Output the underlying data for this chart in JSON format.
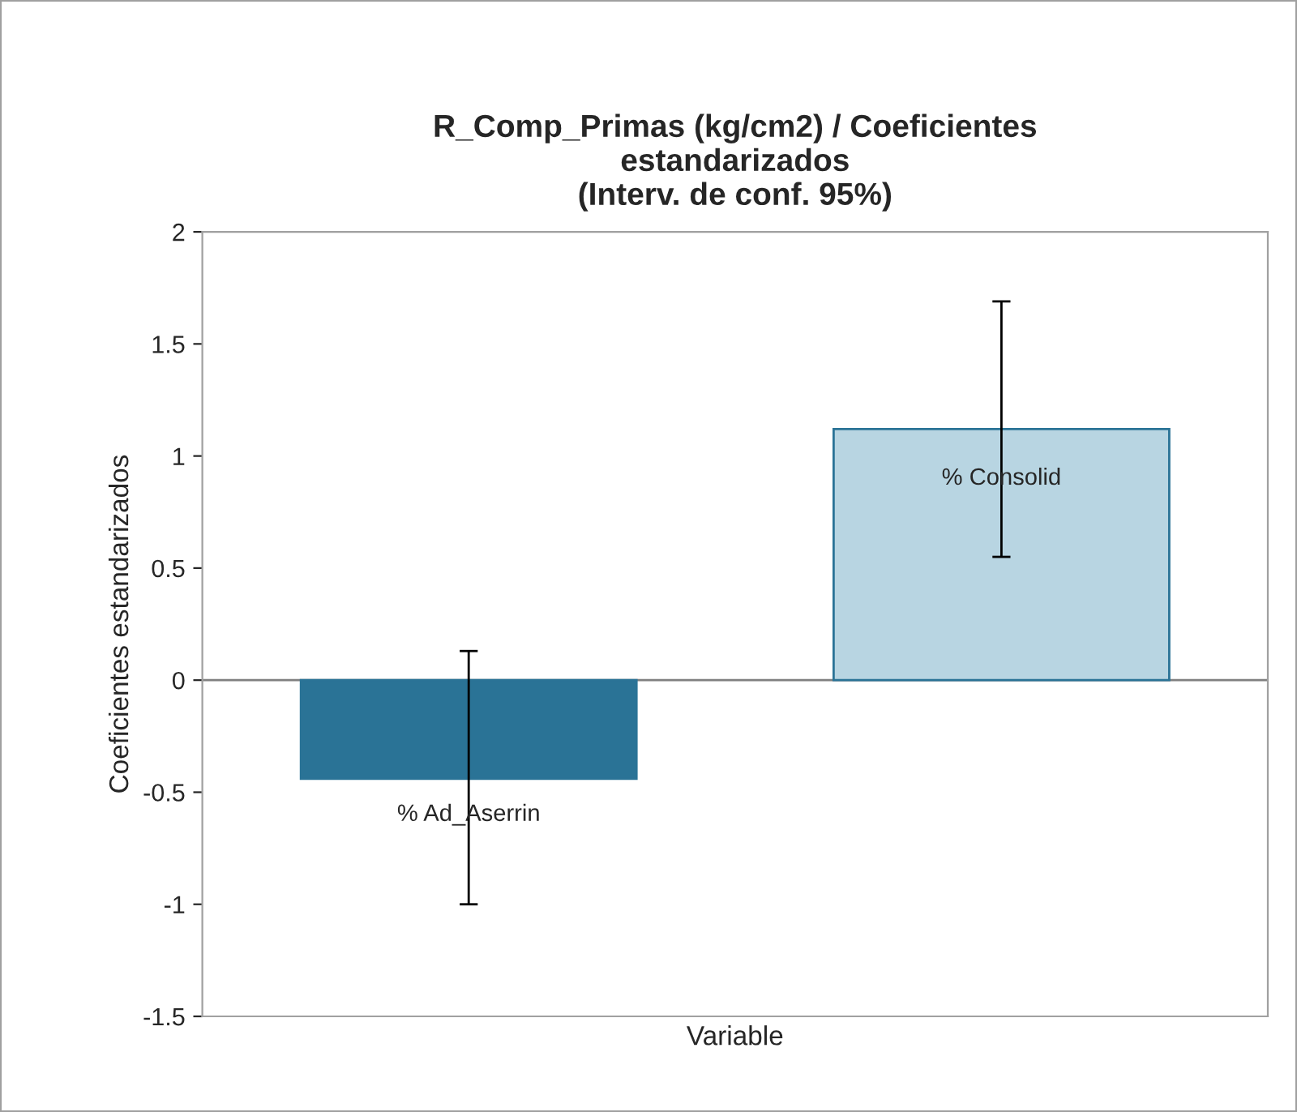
{
  "chart_data": {
    "type": "bar",
    "title": "R_Comp_Primas (kg/cm2) / Coeficientes\nestandarizados\n(Interv. de conf. 95%)",
    "xlabel": "Variable",
    "ylabel": "Coeficientes estandarizados",
    "categories": [
      "% Ad_Aserrin",
      "% Consolid"
    ],
    "values": [
      -0.44,
      1.12
    ],
    "colors": [
      "#2a7396",
      "#b8d5e2"
    ],
    "errors": [
      [
        -1.0,
        0.13
      ],
      [
        0.55,
        1.69
      ]
    ],
    "ylim": [
      -1.5,
      2
    ],
    "yticks": [
      -1.5,
      -1,
      -0.5,
      0,
      0.5,
      1,
      1.5,
      2
    ],
    "ref_lines": [
      {
        "axis": "y",
        "value": 0,
        "color": "#808080"
      }
    ],
    "grid": false,
    "legend": false
  }
}
